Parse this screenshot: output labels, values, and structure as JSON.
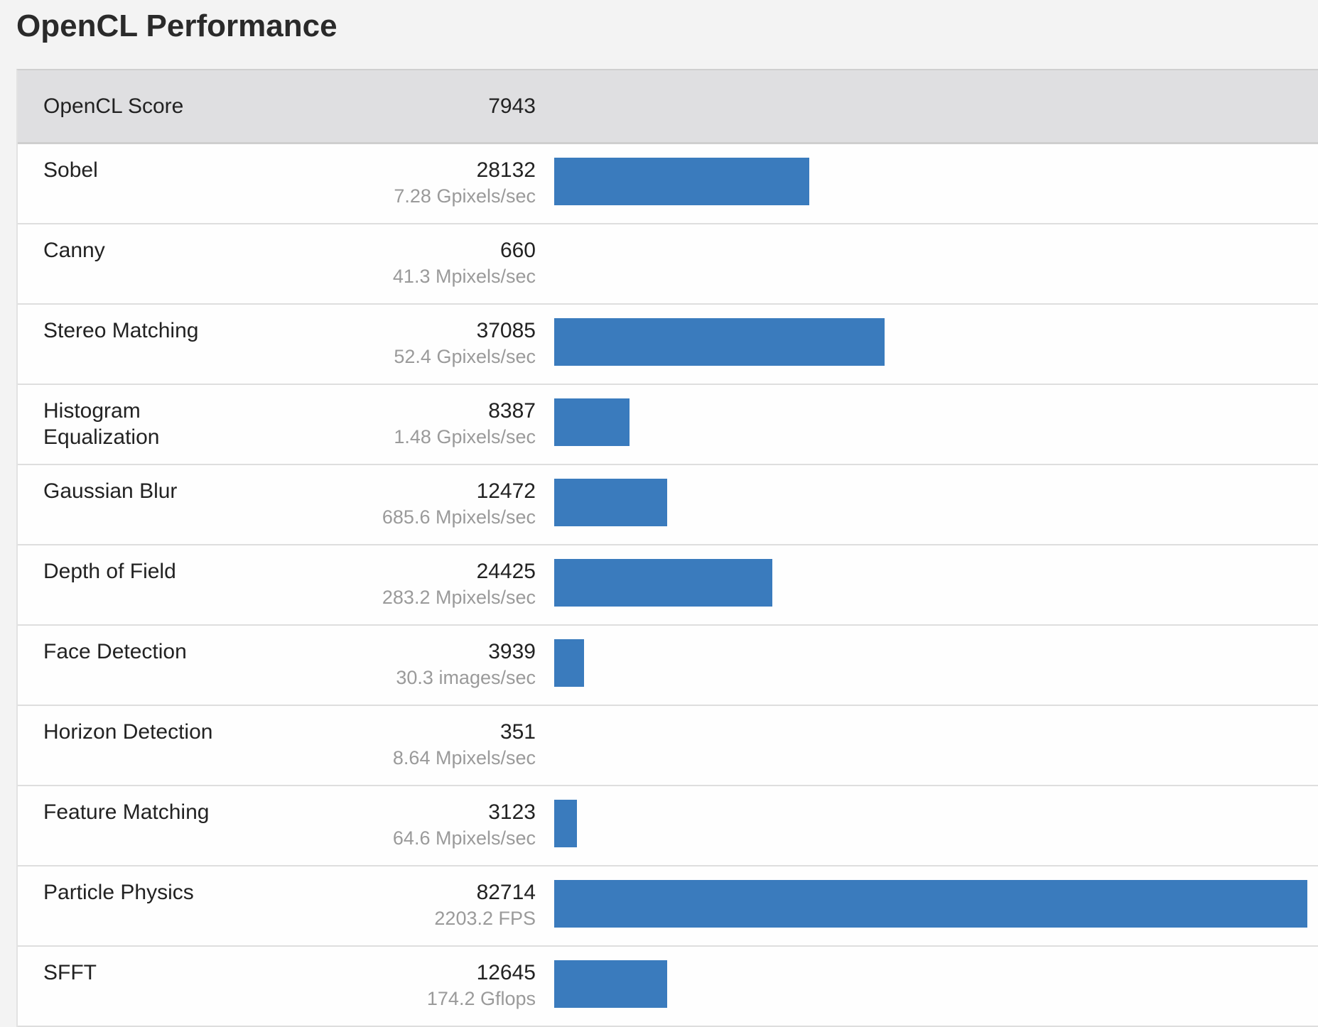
{
  "title": "OpenCL Performance",
  "colors": {
    "bar": "#3a7bbd",
    "header_bg": "#dfdfe1",
    "page_bg": "#f3f3f3"
  },
  "summary": {
    "label": "OpenCL Score",
    "score": "7943"
  },
  "rows": [
    {
      "name": "Sobel",
      "score": "28132",
      "rate": "7.28 Gpixels/sec",
      "bar_percent": 33.9
    },
    {
      "name": "Canny",
      "score": "660",
      "rate": "41.3 Mpixels/sec",
      "bar_percent": 0
    },
    {
      "name": "Stereo Matching",
      "score": "37085",
      "rate": "52.4 Gpixels/sec",
      "bar_percent": 43.9
    },
    {
      "name": "Histogram\nEqualization",
      "score": "8387",
      "rate": "1.48 Gpixels/sec",
      "bar_percent": 10.0
    },
    {
      "name": "Gaussian Blur",
      "score": "12472",
      "rate": "685.6 Mpixels/sec",
      "bar_percent": 15.0
    },
    {
      "name": "Depth of Field",
      "score": "24425",
      "rate": "283.2 Mpixels/sec",
      "bar_percent": 29.0
    },
    {
      "name": "Face Detection",
      "score": "3939",
      "rate": "30.3 images/sec",
      "bar_percent": 4.0
    },
    {
      "name": "Horizon Detection",
      "score": "351",
      "rate": "8.64 Mpixels/sec",
      "bar_percent": 0
    },
    {
      "name": "Feature Matching",
      "score": "3123",
      "rate": "64.6 Mpixels/sec",
      "bar_percent": 3.0
    },
    {
      "name": "Particle Physics",
      "score": "82714",
      "rate": "2203.2 FPS",
      "bar_percent": 100
    },
    {
      "name": "SFFT",
      "score": "12645",
      "rate": "174.2 Gflops",
      "bar_percent": 15.0
    }
  ]
}
